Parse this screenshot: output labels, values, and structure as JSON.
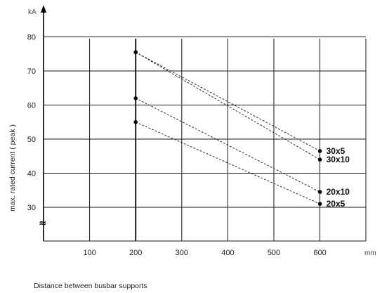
{
  "chart_data": {
    "type": "line",
    "title": "",
    "xlabel": "Distance between busbar supports",
    "ylabel": "max. rated current ( peak )",
    "x_unit": "mm",
    "y_unit": "kA",
    "x_ticks": [
      100,
      200,
      300,
      400,
      500,
      600
    ],
    "y_ticks": [
      30,
      40,
      50,
      60,
      70,
      80
    ],
    "xlim": [
      0,
      700
    ],
    "ylim": [
      30,
      80
    ],
    "axis_break_symbol": "≈",
    "grid": true,
    "series": [
      {
        "name": "30x5",
        "x": [
          200,
          600
        ],
        "y": [
          75.5,
          46.5
        ]
      },
      {
        "name": "30x10",
        "x": [
          200,
          600
        ],
        "y": [
          75.5,
          44
        ]
      },
      {
        "name": "20x10",
        "x": [
          200,
          600
        ],
        "y": [
          62,
          34.5
        ]
      },
      {
        "name": "20x5",
        "x": [
          200,
          600
        ],
        "y": [
          55,
          31
        ]
      }
    ]
  }
}
